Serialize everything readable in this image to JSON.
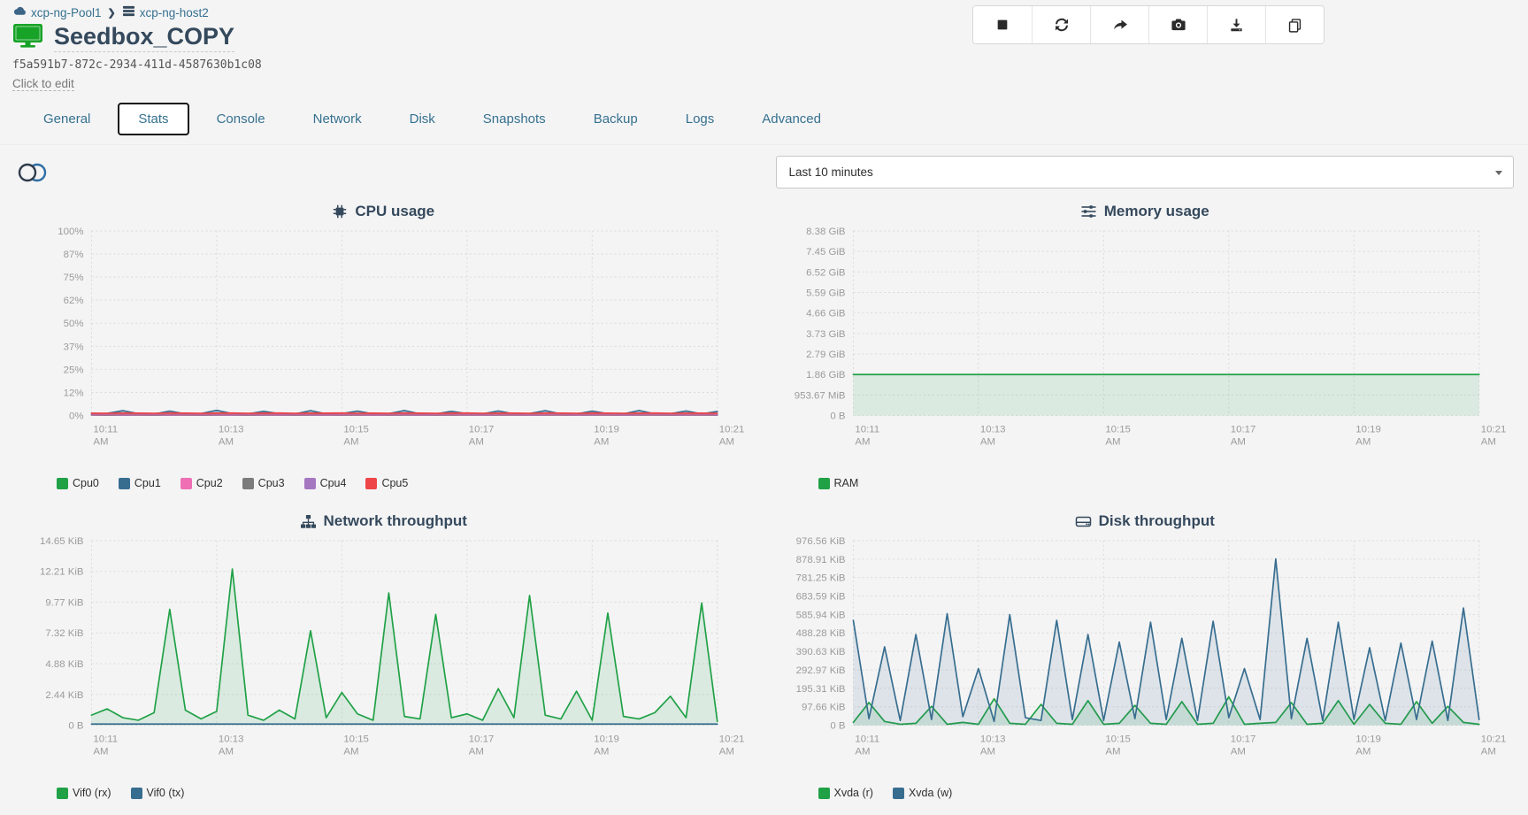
{
  "breadcrumb": {
    "pool": "xcp-ng-Pool1",
    "host": "xcp-ng-host2",
    "separator": "❯"
  },
  "header": {
    "title": "Seedbox_COPY",
    "uuid": "f5a591b7-872c-2934-411d-4587630b1c08",
    "edit_hint": "Click to edit"
  },
  "toolbar": {
    "buttons": [
      {
        "name": "stop-button",
        "icon": "stop-icon"
      },
      {
        "name": "reboot-button",
        "icon": "refresh-icon"
      },
      {
        "name": "migrate-button",
        "icon": "forward-arrow-icon"
      },
      {
        "name": "snapshot-button",
        "icon": "camera-icon"
      },
      {
        "name": "export-button",
        "icon": "download-icon"
      },
      {
        "name": "copy-button",
        "icon": "copy-icon"
      }
    ]
  },
  "tabs": {
    "items": [
      {
        "label": "General",
        "active": false
      },
      {
        "label": "Stats",
        "active": true
      },
      {
        "label": "Console",
        "active": false
      },
      {
        "label": "Network",
        "active": false
      },
      {
        "label": "Disk",
        "active": false
      },
      {
        "label": "Snapshots",
        "active": false
      },
      {
        "label": "Backup",
        "active": false
      },
      {
        "label": "Logs",
        "active": false
      },
      {
        "label": "Advanced",
        "active": false
      }
    ]
  },
  "controls": {
    "granularity_selected": "Last 10 minutes"
  },
  "colors": {
    "green": "#20a146",
    "blue": "#376d8f",
    "pink": "#ee6fb4",
    "gray": "#7b7b7b",
    "purple": "#a577c0",
    "red": "#ee4549",
    "title_navy": "#35495c",
    "link_blue": "#36718f",
    "page_bg": "#f4f4f5"
  },
  "chart_data": [
    {
      "type": "line",
      "title": "CPU usage",
      "icon": "cpu-chip-icon",
      "ylim": [
        0,
        100
      ],
      "yticks": [
        "100%",
        "87%",
        "75%",
        "62%",
        "50%",
        "37%",
        "25%",
        "12%",
        "0%"
      ],
      "xticks": [
        "10:11",
        "10:13",
        "10:15",
        "10:17",
        "10:19",
        "10:21"
      ],
      "xsuffix": "AM",
      "fill_opacity": 0.3,
      "series": [
        {
          "name": "Cpu0",
          "color": "#20a146",
          "values": [
            0.5,
            0.4,
            0.6,
            0.5,
            0.4,
            0.5,
            0.6,
            0.4,
            0.5,
            0.5,
            0.4,
            0.6,
            0.5,
            0.4,
            0.5,
            0.6,
            0.5,
            0.4,
            0.5,
            0.4,
            0.6,
            0.5,
            0.4,
            0.5,
            0.6,
            0.4,
            0.5,
            0.5,
            0.6,
            0.4,
            0.5,
            0.4,
            0.6,
            0.5,
            0.4,
            0.5,
            0.6,
            0.5,
            0.4,
            0.5,
            0.4
          ]
        },
        {
          "name": "Cpu1",
          "color": "#376d8f",
          "values": [
            0.9,
            1.2,
            2.6,
            1.0,
            0.8,
            2.4,
            0.9,
            1.1,
            2.8,
            1.0,
            0.9,
            2.3,
            1.0,
            0.8,
            2.6,
            0.9,
            1.1,
            2.4,
            0.9,
            1.0,
            2.7,
            0.9,
            0.8,
            2.3,
            1.0,
            0.9,
            2.5,
            0.9,
            1.1,
            2.6,
            0.9,
            0.8,
            2.4,
            1.0,
            0.9,
            2.7,
            0.9,
            1.0,
            2.5,
            0.9,
            2.2
          ]
        },
        {
          "name": "Cpu2",
          "color": "#ee6fb4",
          "values": [
            0.4,
            0.3,
            0.5,
            0.4,
            0.3,
            0.5,
            0.4,
            0.3,
            0.4,
            0.5,
            0.3,
            0.4,
            0.5,
            0.3,
            0.4,
            0.4,
            0.5,
            0.3,
            0.4,
            0.3,
            0.5,
            0.4,
            0.3,
            0.4,
            0.5,
            0.3,
            0.4,
            0.4,
            0.3,
            0.5,
            0.4,
            0.3,
            0.5,
            0.4,
            0.3,
            0.4,
            0.5,
            0.3,
            0.4,
            0.4,
            0.3
          ]
        },
        {
          "name": "Cpu3",
          "color": "#7b7b7b",
          "values": [
            0.3,
            0.2,
            0.3,
            0.3,
            0.2,
            0.3,
            0.3,
            0.2,
            0.3,
            0.3,
            0.2,
            0.3,
            0.3,
            0.2,
            0.3,
            0.3,
            0.2,
            0.3,
            0.3,
            0.2,
            0.3,
            0.3,
            0.2,
            0.3,
            0.3,
            0.2,
            0.3,
            0.3,
            0.2,
            0.3,
            0.3,
            0.2,
            0.3,
            0.3,
            0.2,
            0.3,
            0.3,
            0.2,
            0.3,
            0.3,
            0.2
          ]
        },
        {
          "name": "Cpu4",
          "color": "#a577c0",
          "values": [
            0.4,
            0.5,
            0.3,
            0.4,
            0.5,
            0.3,
            0.4,
            0.5,
            0.4,
            0.3,
            0.5,
            0.4,
            0.3,
            0.5,
            0.4,
            0.3,
            0.4,
            0.5,
            0.3,
            0.4,
            0.5,
            0.3,
            0.4,
            0.5,
            0.4,
            0.3,
            0.5,
            0.4,
            0.3,
            0.4,
            0.5,
            0.3,
            0.4,
            0.5,
            0.3,
            0.4,
            0.5,
            0.4,
            0.3,
            0.5,
            0.4
          ]
        },
        {
          "name": "Cpu5",
          "color": "#ee4549",
          "values": [
            1.3,
            1.2,
            1.4,
            1.3,
            1.2,
            1.4,
            1.3,
            1.2,
            1.3,
            1.4,
            1.2,
            1.3,
            1.4,
            1.2,
            1.3,
            1.3,
            1.4,
            1.2,
            1.3,
            1.2,
            1.4,
            1.3,
            1.2,
            1.3,
            1.4,
            1.2,
            1.3,
            1.3,
            1.2,
            1.4,
            1.3,
            1.2,
            1.4,
            1.3,
            1.2,
            1.3,
            1.4,
            1.2,
            1.3,
            1.3,
            1.2
          ]
        }
      ]
    },
    {
      "type": "area",
      "title": "Memory usage",
      "icon": "memory-sliders-icon",
      "ylim": [
        0,
        8.38
      ],
      "yunit": "GiB",
      "yticks": [
        "8.38 GiB",
        "7.45 GiB",
        "6.52 GiB",
        "5.59 GiB",
        "4.66 GiB",
        "3.73 GiB",
        "2.79 GiB",
        "1.86 GiB",
        "953.67 MiB",
        "0 B"
      ],
      "xticks": [
        "10:11",
        "10:13",
        "10:15",
        "10:17",
        "10:19",
        "10:21"
      ],
      "xsuffix": "AM",
      "fill_opacity": 0.12,
      "series": [
        {
          "name": "RAM",
          "color": "#20a146",
          "values": [
            1.86,
            1.86,
            1.86,
            1.86,
            1.86,
            1.86,
            1.86,
            1.86,
            1.86,
            1.86,
            1.86
          ]
        }
      ]
    },
    {
      "type": "area",
      "title": "Network throughput",
      "icon": "network-sitemap-icon",
      "ylim": [
        0,
        14.65
      ],
      "yunit": "KiB",
      "yticks": [
        "14.65 KiB",
        "12.21 KiB",
        "9.77 KiB",
        "7.32 KiB",
        "4.88 KiB",
        "2.44 KiB",
        "0 B"
      ],
      "xticks": [
        "10:11",
        "10:13",
        "10:15",
        "10:17",
        "10:19",
        "10:21"
      ],
      "xsuffix": "AM",
      "fill_opacity": 0.12,
      "series": [
        {
          "name": "Vif0 (rx)",
          "color": "#20a146",
          "values": [
            0.8,
            1.3,
            0.6,
            0.4,
            1.0,
            9.2,
            1.2,
            0.5,
            1.1,
            12.4,
            0.8,
            0.4,
            1.2,
            0.5,
            7.5,
            0.6,
            2.6,
            0.9,
            0.4,
            10.5,
            0.7,
            0.5,
            8.8,
            0.6,
            0.9,
            0.4,
            2.9,
            0.6,
            10.3,
            0.8,
            0.5,
            2.7,
            0.4,
            8.9,
            0.7,
            0.5,
            1.0,
            2.3,
            0.6,
            9.7,
            0.3
          ]
        },
        {
          "name": "Vif0 (tx)",
          "color": "#376d8f",
          "values": [
            0.1,
            0.1,
            0.1,
            0.1,
            0.1,
            0.1,
            0.1,
            0.1,
            0.1,
            0.1,
            0.1,
            0.1,
            0.1,
            0.1,
            0.1,
            0.1,
            0.1,
            0.1,
            0.1,
            0.1,
            0.1,
            0.1,
            0.1,
            0.1,
            0.1,
            0.1,
            0.1,
            0.1,
            0.1,
            0.1,
            0.1,
            0.1,
            0.1,
            0.1,
            0.1,
            0.1,
            0.1,
            0.1,
            0.1,
            0.1,
            0.1
          ]
        }
      ]
    },
    {
      "type": "area",
      "title": "Disk throughput",
      "icon": "disk-hdd-icon",
      "ylim": [
        0,
        976.56
      ],
      "yunit": "KiB",
      "yticks": [
        "976.56 KiB",
        "878.91 KiB",
        "781.25 KiB",
        "683.59 KiB",
        "585.94 KiB",
        "488.28 KiB",
        "390.63 KiB",
        "292.97 KiB",
        "195.31 KiB",
        "97.66 KiB",
        "0 B"
      ],
      "xticks": [
        "10:11",
        "10:13",
        "10:15",
        "10:17",
        "10:19",
        "10:21"
      ],
      "xsuffix": "AM",
      "fill_opacity": 0.12,
      "series": [
        {
          "name": "Xvda (r)",
          "color": "#20a146",
          "values": [
            15,
            120,
            20,
            5,
            10,
            100,
            5,
            15,
            5,
            140,
            10,
            5,
            110,
            10,
            5,
            130,
            5,
            10,
            105,
            10,
            5,
            125,
            5,
            10,
            150,
            5,
            10,
            15,
            120,
            5,
            10,
            130,
            5,
            110,
            10,
            5,
            125,
            10,
            100,
            15,
            5
          ]
        },
        {
          "name": "Xvda (w)",
          "color": "#376d8f",
          "values": [
            555,
            35,
            415,
            25,
            480,
            30,
            590,
            45,
            300,
            20,
            585,
            40,
            25,
            555,
            30,
            480,
            25,
            440,
            35,
            545,
            30,
            460,
            25,
            550,
            40,
            300,
            30,
            880,
            35,
            460,
            25,
            545,
            30,
            410,
            25,
            435,
            30,
            445,
            25,
            620,
            30
          ]
        }
      ]
    }
  ]
}
